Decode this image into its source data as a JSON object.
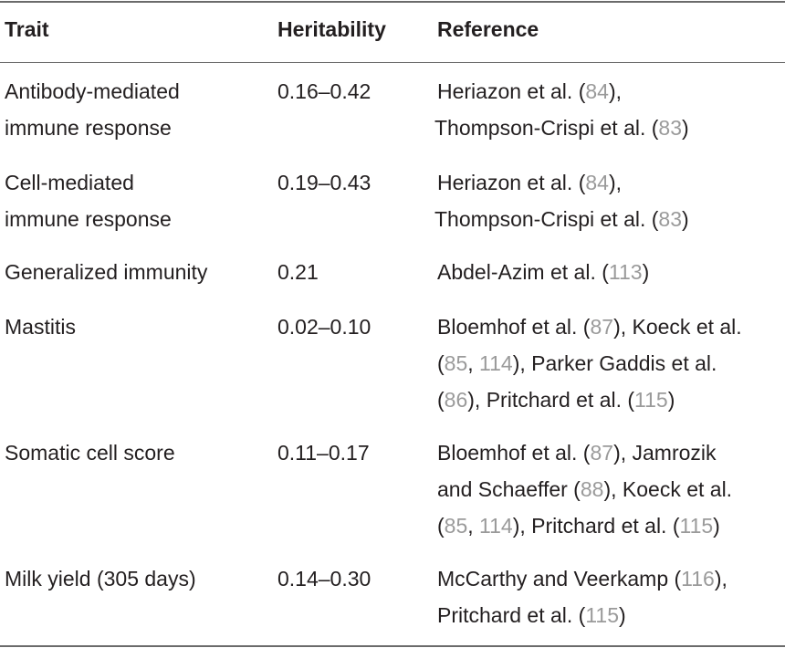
{
  "header": {
    "trait": "Trait",
    "heritability": "Heritability",
    "reference": "Reference"
  },
  "rows": [
    {
      "trait": [
        "Antibody-mediated",
        "immune response"
      ],
      "heritability": "0.16–0.42",
      "reference": [
        [
          {
            "t": "Heriazon et al. ("
          },
          {
            "c": "84"
          },
          {
            "t": "),"
          }
        ],
        [
          {
            "t": "Thompson-Crispi et al. ("
          },
          {
            "c": "83"
          },
          {
            "t": ")"
          }
        ]
      ]
    },
    {
      "trait": [
        "Cell-mediated",
        "immune response"
      ],
      "heritability": "0.19–0.43",
      "reference": [
        [
          {
            "t": "Heriazon et al. ("
          },
          {
            "c": "84"
          },
          {
            "t": "),"
          }
        ],
        [
          {
            "t": "Thompson-Crispi et al. ("
          },
          {
            "c": "83"
          },
          {
            "t": ")"
          }
        ]
      ]
    },
    {
      "trait": [
        "Generalized immunity"
      ],
      "heritability": "0.21",
      "reference": [
        [
          {
            "t": "Abdel-Azim et al. ("
          },
          {
            "c": "113"
          },
          {
            "t": ")"
          }
        ]
      ]
    },
    {
      "trait": [
        "Mastitis"
      ],
      "heritability": "0.02–0.10",
      "reference": [
        [
          {
            "t": "Bloemhof et al. ("
          },
          {
            "c": "87"
          },
          {
            "t": "), Koeck et al."
          }
        ],
        [
          {
            "t": "("
          },
          {
            "c": "85"
          },
          {
            "t": ", "
          },
          {
            "c": "114"
          },
          {
            "t": "), Parker Gaddis et al."
          }
        ],
        [
          {
            "t": "("
          },
          {
            "c": "86"
          },
          {
            "t": "), Pritchard et al. ("
          },
          {
            "c": "115"
          },
          {
            "t": ")"
          }
        ]
      ]
    },
    {
      "trait": [
        "Somatic cell score"
      ],
      "heritability": "0.11–0.17",
      "reference": [
        [
          {
            "t": "Bloemhof et al. ("
          },
          {
            "c": "87"
          },
          {
            "t": "), Jamrozik"
          }
        ],
        [
          {
            "t": "and Schaeffer ("
          },
          {
            "c": "88"
          },
          {
            "t": "), Koeck et al."
          }
        ],
        [
          {
            "t": "("
          },
          {
            "c": "85"
          },
          {
            "t": ", "
          },
          {
            "c": "114"
          },
          {
            "t": "), Pritchard et al. ("
          },
          {
            "c": "115"
          },
          {
            "t": ")"
          }
        ]
      ]
    },
    {
      "trait": [
        "Milk yield (305 days)"
      ],
      "heritability": "0.14–0.30",
      "reference": [
        [
          {
            "t": "McCarthy and Veerkamp ("
          },
          {
            "c": "116"
          },
          {
            "t": "),"
          }
        ],
        [
          {
            "t": "Pritchard et al. ("
          },
          {
            "c": "115"
          },
          {
            "t": ")"
          }
        ]
      ]
    }
  ]
}
